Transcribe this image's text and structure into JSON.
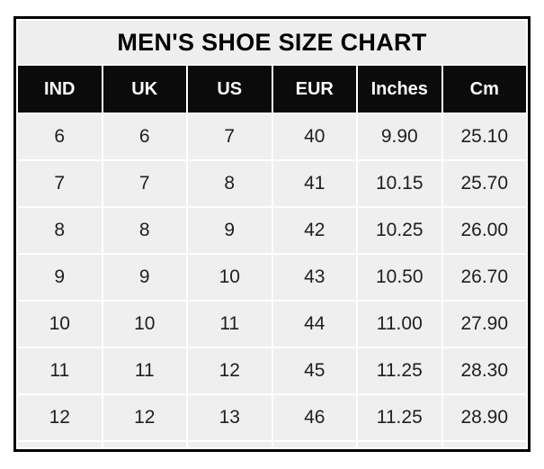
{
  "table": {
    "title": "MEN'S SHOE SIZE CHART",
    "columns": [
      "IND",
      "UK",
      "US",
      "EUR",
      "Inches",
      "Cm"
    ],
    "rows": [
      [
        "6",
        "6",
        "7",
        "40",
        "9.90",
        "25.10"
      ],
      [
        "7",
        "7",
        "8",
        "41",
        "10.15",
        "25.70"
      ],
      [
        "8",
        "8",
        "9",
        "42",
        "10.25",
        "26.00"
      ],
      [
        "9",
        "9",
        "10",
        "43",
        "10.50",
        "26.70"
      ],
      [
        "10",
        "10",
        "11",
        "44",
        "11.00",
        "27.90"
      ],
      [
        "11",
        "11",
        "12",
        "45",
        "11.25",
        "28.30"
      ],
      [
        "12",
        "12",
        "13",
        "46",
        "11.25",
        "28.90"
      ]
    ],
    "colors": {
      "outer_border": "#000000",
      "title_background": "#eeeeee",
      "header_background": "#0b0b0b",
      "header_text": "#fbfbfb",
      "cell_background": "#efefef",
      "cell_text": "#1f1f1f",
      "grid_lines": "#ffffff"
    }
  },
  "chart_data": {
    "type": "table",
    "title": "MEN'S SHOE SIZE CHART",
    "columns": [
      "IND",
      "UK",
      "US",
      "EUR",
      "Inches",
      "Cm"
    ],
    "rows": [
      [
        6,
        6,
        7,
        40,
        9.9,
        25.1
      ],
      [
        7,
        7,
        8,
        41,
        10.15,
        25.7
      ],
      [
        8,
        8,
        9,
        42,
        10.25,
        26.0
      ],
      [
        9,
        9,
        10,
        43,
        10.5,
        26.7
      ],
      [
        10,
        10,
        11,
        44,
        11.0,
        27.9
      ],
      [
        11,
        11,
        12,
        45,
        11.25,
        28.3
      ],
      [
        12,
        12,
        13,
        46,
        11.25,
        28.9
      ]
    ],
    "layout": {
      "title_position": "top",
      "header_style": "black-background-white-text",
      "grid": "white-lines-on-light-gray-cells",
      "outer_border": "thick-black"
    }
  }
}
